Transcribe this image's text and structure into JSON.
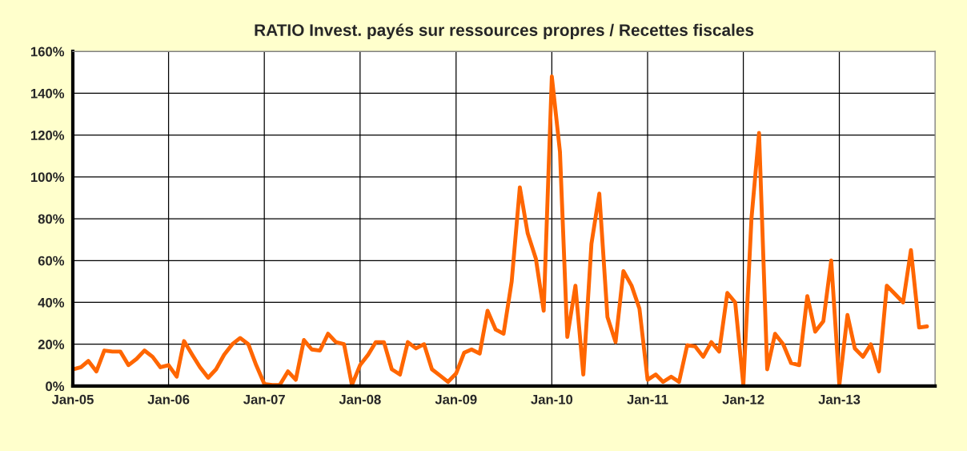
{
  "chart_data": {
    "type": "line",
    "title": "RATIO Invest. payés sur ressources propres / Recettes fiscales",
    "x": [
      "2005-01",
      "2005-02",
      "2005-03",
      "2005-04",
      "2005-05",
      "2005-06",
      "2005-07",
      "2005-08",
      "2005-09",
      "2005-10",
      "2005-11",
      "2005-12",
      "2006-01",
      "2006-02",
      "2006-03",
      "2006-04",
      "2006-05",
      "2006-06",
      "2006-07",
      "2006-08",
      "2006-09",
      "2006-10",
      "2006-11",
      "2006-12",
      "2007-01",
      "2007-02",
      "2007-03",
      "2007-04",
      "2007-05",
      "2007-06",
      "2007-07",
      "2007-08",
      "2007-09",
      "2007-10",
      "2007-11",
      "2007-12",
      "2008-01",
      "2008-02",
      "2008-03",
      "2008-04",
      "2008-05",
      "2008-06",
      "2008-07",
      "2008-08",
      "2008-09",
      "2008-10",
      "2008-11",
      "2008-12",
      "2009-01",
      "2009-02",
      "2009-03",
      "2009-04",
      "2009-05",
      "2009-06",
      "2009-07",
      "2009-08",
      "2009-09",
      "2009-10",
      "2009-11",
      "2009-12",
      "2010-01",
      "2010-02",
      "2010-03",
      "2010-04",
      "2010-05",
      "2010-06",
      "2010-07",
      "2010-08",
      "2010-09",
      "2010-10",
      "2010-11",
      "2010-12",
      "2011-01",
      "2011-02",
      "2011-03",
      "2011-04",
      "2011-05",
      "2011-06",
      "2011-07",
      "2011-08",
      "2011-09",
      "2011-10",
      "2011-11",
      "2011-12",
      "2012-01",
      "2012-02",
      "2012-03",
      "2012-04",
      "2012-05",
      "2012-06",
      "2012-07",
      "2012-08",
      "2012-09",
      "2012-10",
      "2012-11",
      "2012-12",
      "2013-01",
      "2013-02",
      "2013-03",
      "2013-04",
      "2013-05",
      "2013-06",
      "2013-07",
      "2013-08",
      "2013-09",
      "2013-10",
      "2013-11",
      "2013-12"
    ],
    "series": [
      {
        "color": "#ff6600",
        "values": [
          8,
          9,
          12,
          7,
          17,
          16.5,
          16.5,
          10,
          13,
          17,
          14,
          9,
          10,
          4.5,
          21.5,
          15,
          9,
          4,
          8,
          15,
          20,
          23,
          20,
          10,
          1,
          0.5,
          0.5,
          7,
          3,
          22,
          17.5,
          17,
          25,
          21,
          20,
          0.5,
          10,
          15,
          21,
          21,
          8,
          5.5,
          21,
          18,
          20,
          8,
          5,
          2,
          6,
          16,
          17.5,
          15.5,
          36,
          27,
          25,
          50,
          95,
          73,
          61,
          36,
          148,
          112,
          23.5,
          48,
          5.5,
          68,
          92,
          33,
          21,
          55,
          48,
          37,
          3,
          5.5,
          2,
          4.5,
          2,
          19.5,
          19,
          14,
          21,
          16.5,
          44.5,
          40,
          0.5,
          80,
          121,
          8,
          25,
          20,
          11,
          10,
          43,
          26,
          31,
          60,
          0.5,
          34,
          18,
          14,
          20,
          7,
          48,
          44,
          40,
          65,
          28,
          28.5
        ]
      }
    ],
    "xlim": [
      "2005-01",
      "2014-01"
    ],
    "xticks": [
      {
        "value": "2005-01",
        "label": "Jan-05"
      },
      {
        "value": "2006-01",
        "label": "Jan-06"
      },
      {
        "value": "2007-01",
        "label": "Jan-07"
      },
      {
        "value": "2008-01",
        "label": "Jan-08"
      },
      {
        "value": "2009-01",
        "label": "Jan-09"
      },
      {
        "value": "2010-01",
        "label": "Jan-10"
      },
      {
        "value": "2011-01",
        "label": "Jan-11"
      },
      {
        "value": "2012-01",
        "label": "Jan-12"
      },
      {
        "value": "2013-01",
        "label": "Jan-13"
      }
    ],
    "ylim": [
      0,
      160
    ],
    "yticks": [
      {
        "value": 0,
        "label": "0%"
      },
      {
        "value": 20,
        "label": "20%"
      },
      {
        "value": 40,
        "label": "40%"
      },
      {
        "value": 60,
        "label": "60%"
      },
      {
        "value": 80,
        "label": "80%"
      },
      {
        "value": 100,
        "label": "100%"
      },
      {
        "value": 120,
        "label": "120%"
      },
      {
        "value": 140,
        "label": "140%"
      },
      {
        "value": 160,
        "label": "160%"
      }
    ],
    "grid": true,
    "legend": false,
    "marker": "none",
    "line_style": "solid"
  }
}
